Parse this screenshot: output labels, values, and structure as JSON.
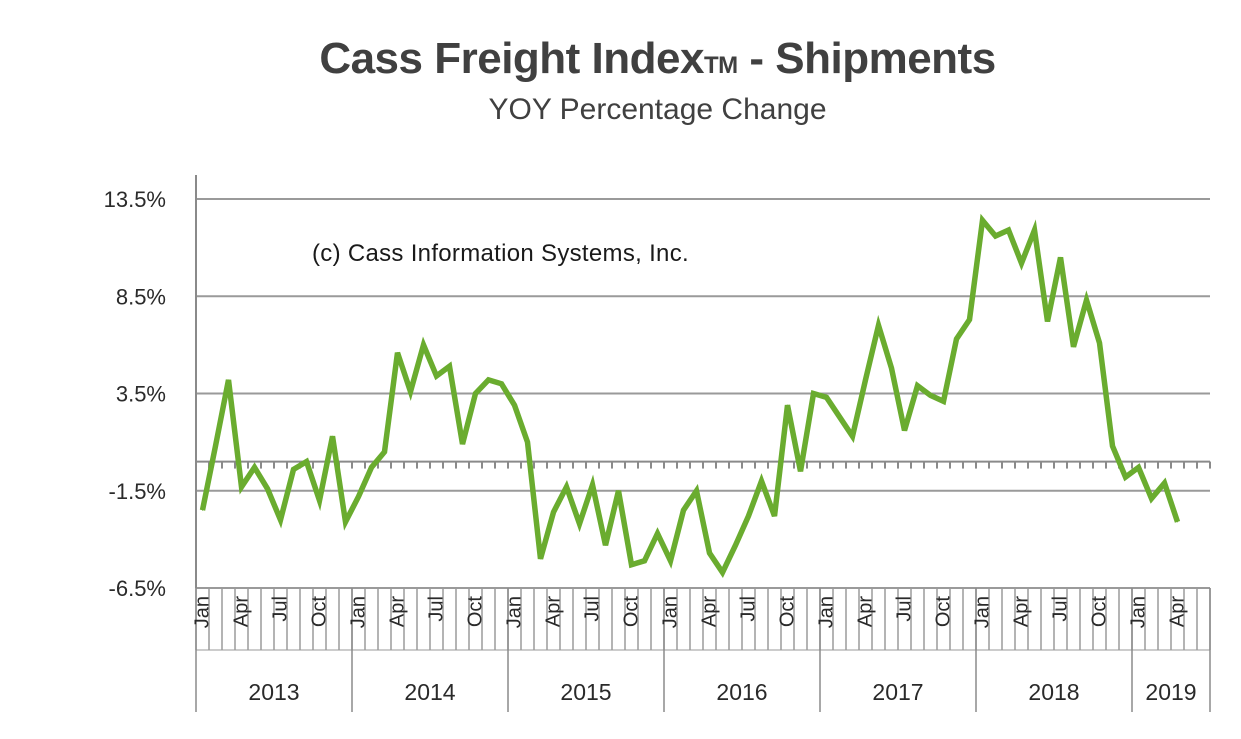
{
  "chart_data": {
    "type": "line",
    "title": "Cass Freight Index",
    "title_mark": "TM",
    "title_suffix": "- Shipments",
    "subtitle": "YOY Percentage Change",
    "annotation": "(c) Cass Information Systems, Inc.",
    "ylim": [
      -6.5,
      13.5
    ],
    "yticks": [
      "13.5%",
      "8.5%",
      "3.5%",
      "-1.5%",
      "-6.5%"
    ],
    "ytick_values": [
      13.5,
      8.5,
      3.5,
      -1.5,
      -6.5
    ],
    "month_labels": [
      "Jan",
      "Apr",
      "Jul",
      "Oct"
    ],
    "years": [
      "2013",
      "2014",
      "2015",
      "2016",
      "2017",
      "2018",
      "2019"
    ],
    "last_year_month_labels": [
      "Jan",
      "Apr"
    ],
    "grid": true,
    "line_color": "#6aac2f",
    "series": [
      {
        "values": [
          -2.5,
          0.8,
          4.2,
          -1.3,
          -0.3,
          -1.4,
          -3.0,
          -0.4,
          0.0,
          -2.0,
          1.3,
          -3.1,
          -1.8,
          -0.3,
          0.5,
          5.6,
          3.6,
          6.0,
          4.4,
          4.9,
          0.9,
          3.5,
          4.2,
          4.0,
          2.9,
          1.0,
          -5.0,
          -2.6,
          -1.3,
          -3.2,
          -1.2,
          -4.3,
          -1.5,
          -5.3,
          -5.1,
          -3.7,
          -5.1,
          -2.5,
          -1.5,
          -4.7,
          -5.7,
          -4.3,
          -2.8,
          -1.0,
          -2.8,
          2.9,
          -0.5,
          3.5,
          3.3,
          2.3,
          1.3,
          4.2,
          7.0,
          4.8,
          1.6,
          3.9,
          3.4,
          3.1,
          6.3,
          7.3,
          12.4,
          11.6,
          11.9,
          10.2,
          11.9,
          7.2,
          10.5,
          5.9,
          8.3,
          6.1,
          0.8,
          -0.8,
          -0.3,
          -1.9,
          -1.1,
          -3.1
        ]
      }
    ]
  }
}
